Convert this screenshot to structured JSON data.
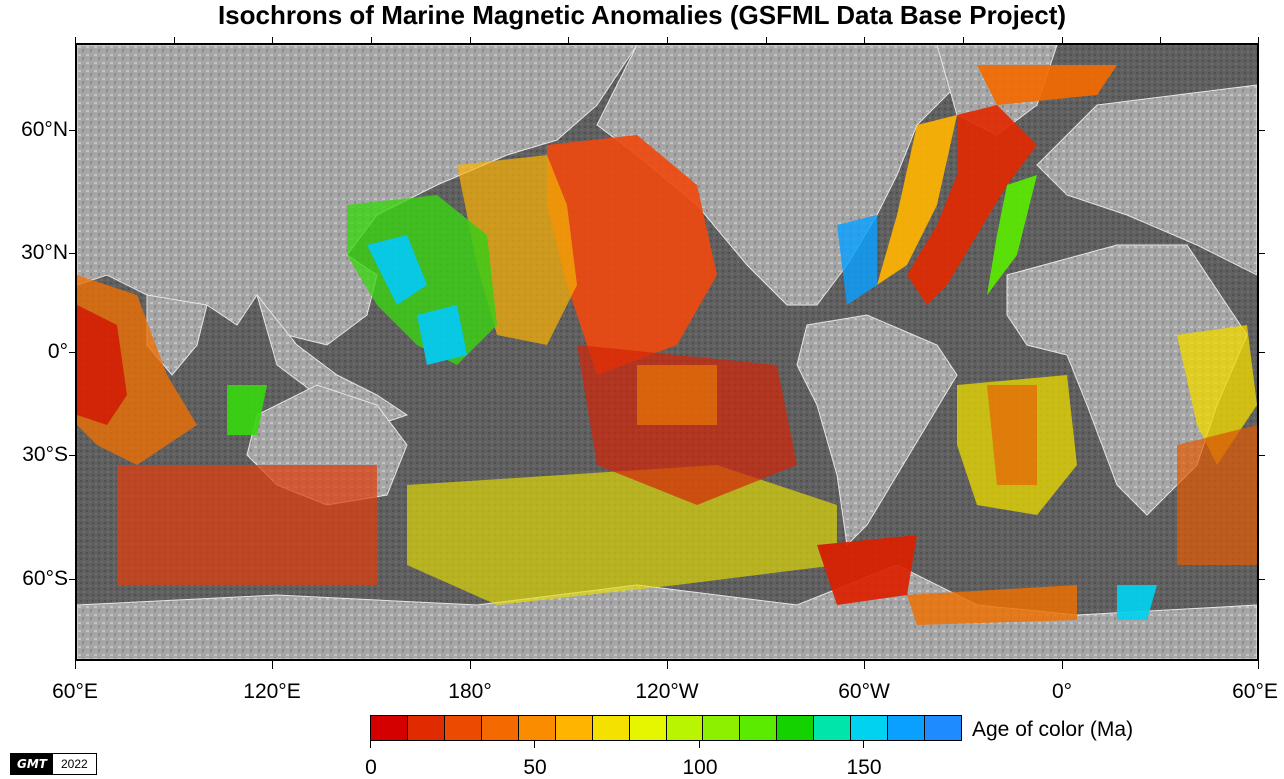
{
  "title": "Isochrons of Marine Magnetic Anomalies (GSFML Data Base Project)",
  "latitude_labels": [
    "60°N",
    "30°N",
    "0°",
    "30°S",
    "60°S"
  ],
  "longitude_labels": [
    "60°E",
    "120°E",
    "180°",
    "120°W",
    "60°W",
    "0°",
    "60°E"
  ],
  "colorbar": {
    "label": "Age of color (Ma)",
    "ticks": [
      "0",
      "50",
      "100",
      "150"
    ],
    "range": [
      0,
      180
    ],
    "colors": [
      "#d40000",
      "#e02a00",
      "#ec4a00",
      "#f56a00",
      "#fa8c00",
      "#ffb400",
      "#f5e100",
      "#e6f500",
      "#b9f500",
      "#8cf000",
      "#5aeb00",
      "#14d200",
      "#00e6aa",
      "#00d2f0",
      "#0aa0ff",
      "#1e8cff"
    ]
  },
  "logo": {
    "text": "GMT",
    "year": "2022"
  },
  "map": {
    "land_color": "#9a9a9a",
    "ocean_color": "#5c5c5c",
    "projection": "cylindrical, 60°E centered"
  }
}
